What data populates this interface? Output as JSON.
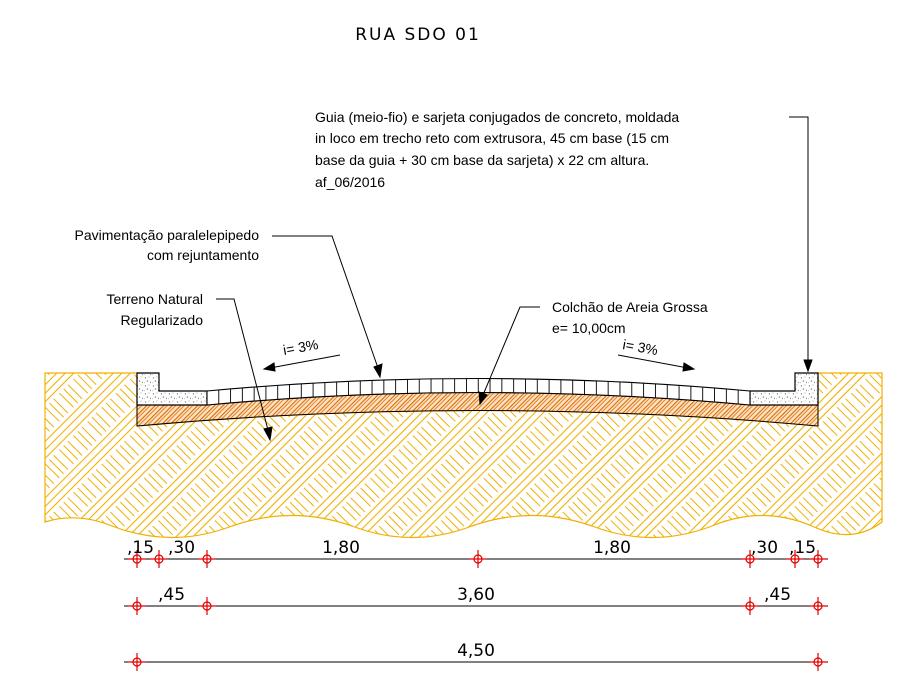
{
  "title": "RUA SDO 01",
  "labels": {
    "guia": [
      "Guia (meio-fio) e sarjeta conjugados de concreto, moldada",
      "in loco  em trecho reto com extrusora, 45 cm base (15 cm",
      "base da guia + 30 cm base da sarjeta) x 22 cm altura.",
      "af_06/2016"
    ],
    "pavimentacao": [
      "Pavimentação paralelepipedo",
      "com rejuntamento"
    ],
    "terreno": [
      "Terreno Natural",
      "Regularizado"
    ],
    "colchao": [
      "Colchão de Areia Grossa",
      "e= 10,00cm"
    ],
    "slope_left": "i= 3%",
    "slope_right": "i= 3%"
  },
  "dimensions": {
    "row1": [
      ",15",
      ",30",
      "1,80",
      "1,80",
      ",30",
      ",15"
    ],
    "row2": [
      ",45",
      "3,60",
      ",45"
    ],
    "row3": [
      "4,50"
    ]
  },
  "colors": {
    "terrain": "#f0b000",
    "sand": "#d86a00",
    "dim_marker": "#e00000",
    "line": "#000000",
    "concrete": "#9a9a9a"
  }
}
